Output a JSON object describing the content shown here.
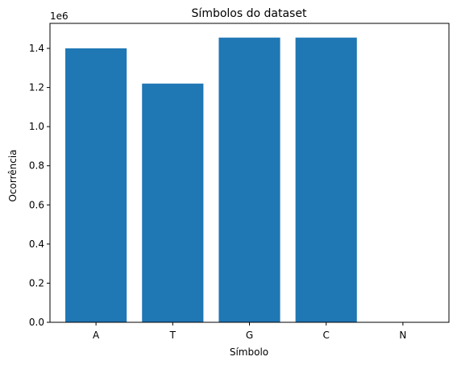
{
  "chart_data": {
    "type": "bar",
    "title": "Símbolos do dataset",
    "xlabel": "Símbolo",
    "ylabel": "Ocorrência",
    "offset_label": "1e6",
    "categories": [
      "A",
      "T",
      "G",
      "C",
      "N"
    ],
    "values": [
      1400000,
      1220000,
      1455000,
      1455000,
      0
    ],
    "ylim": [
      0,
      1527750
    ],
    "yticks": [
      0,
      200000,
      400000,
      600000,
      800000,
      1000000,
      1200000,
      1400000
    ],
    "ytick_labels": [
      "0.0",
      "0.2",
      "0.4",
      "0.6",
      "0.8",
      "1.0",
      "1.2",
      "1.4"
    ],
    "bar_color": "#1f77b4",
    "grid": false,
    "legend": "none"
  }
}
